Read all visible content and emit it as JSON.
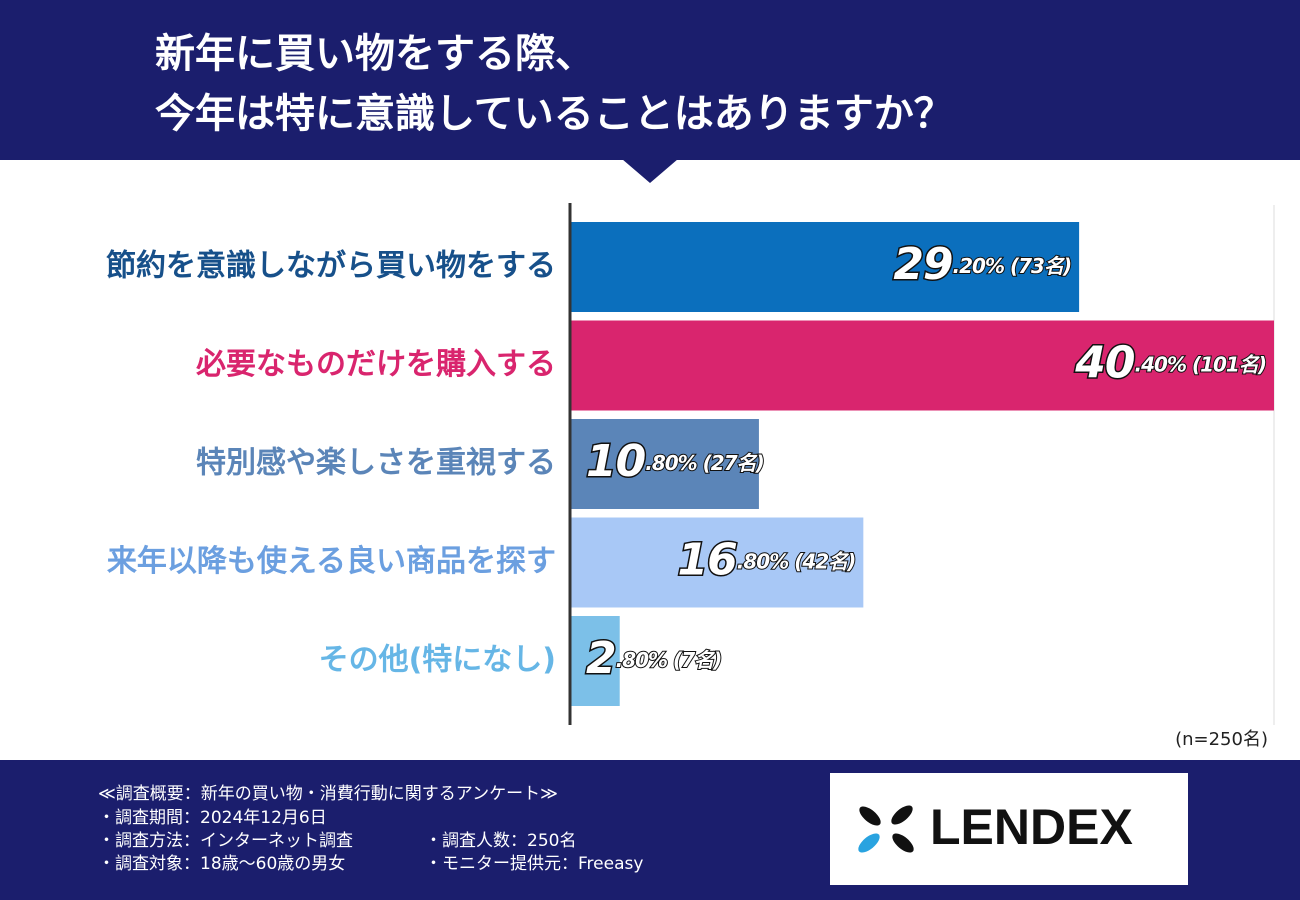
{
  "chart_data": {
    "type": "barh",
    "title_lines": [
      "新年に買い物をする際、",
      "今年は特に意識していることはありますか？"
    ],
    "categories": [
      "節約を意識しながら買い物をする",
      "必要なものだけを購入する",
      "特別感や楽しさを重視する",
      "来年以降も使える良い商品を探す",
      "その他(特になし)"
    ],
    "values": [
      29.2,
      40.4,
      10.8,
      16.8,
      2.8
    ],
    "value_labels": [
      "29.20% (73名)",
      "40.40% (101名)",
      "10.80% (27名)",
      "16.80% (42名)",
      "2.80% (7名)"
    ],
    "colors": [
      "#0b6fbd",
      "#d9256e",
      "#5b85b8",
      "#a8c8f6",
      "#7cc0e8"
    ],
    "label_colors": [
      "#17508a",
      "#d9256e",
      "#5b85b8",
      "#6b9fe0",
      "#66b6e6"
    ],
    "xlim": [
      0,
      40.4
    ],
    "note": "(n=250名)"
  },
  "footer": {
    "heading": "≪調査概要：新年の買い物・消費行動に関するアンケート≫",
    "items": [
      "・調査期間：2024年12月6日",
      "・調査方法：インターネット調査",
      "・調査人数：250名",
      "・調査対象：18歳〜60歳の男女",
      "・モニター提供元：Freeasy"
    ],
    "logo": "LENDEX"
  }
}
